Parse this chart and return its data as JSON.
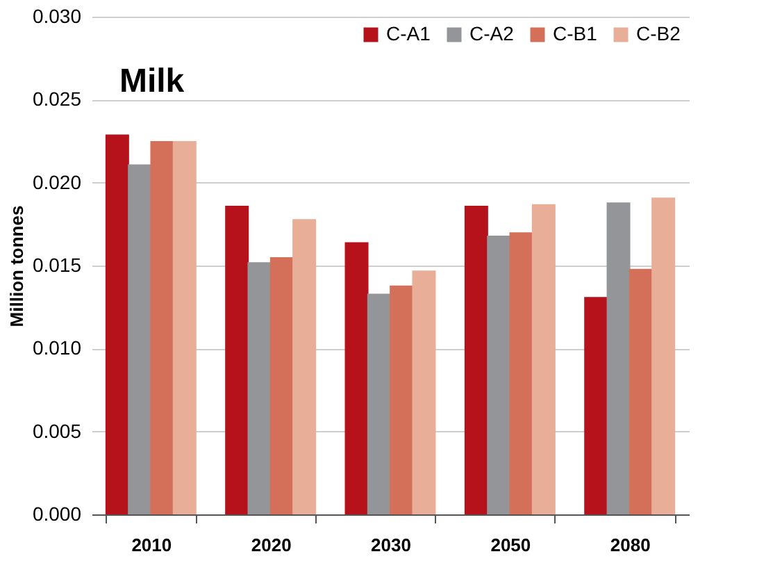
{
  "chart_data": {
    "type": "bar",
    "title": "Milk",
    "ylabel": "Million tonnes",
    "categories": [
      "2010",
      "2020",
      "2030",
      "2050",
      "2080"
    ],
    "series": [
      {
        "name": "C-A1",
        "color": "#b5121b",
        "values": [
          0.0229,
          0.0186,
          0.0164,
          0.0186,
          0.0131
        ]
      },
      {
        "name": "C-A2",
        "color": "#939598",
        "values": [
          0.0211,
          0.0152,
          0.0133,
          0.0168,
          0.0188
        ]
      },
      {
        "name": "C-B1",
        "color": "#d4705a",
        "values": [
          0.0225,
          0.0155,
          0.0138,
          0.017,
          0.0148
        ]
      },
      {
        "name": "C-B2",
        "color": "#e8ae98",
        "values": [
          0.0225,
          0.0178,
          0.0147,
          0.0187,
          0.0191
        ]
      }
    ],
    "ylim": [
      0,
      0.03
    ],
    "yticks": [
      {
        "value": 0,
        "label": "0.000"
      },
      0.005,
      {
        "value": 0.01,
        "label": "0.010"
      },
      0.015,
      {
        "value": 0.02,
        "label": "0.020"
      },
      0.025,
      {
        "value": 0.03,
        "label": "0.030"
      }
    ],
    "grid": "y",
    "legend": "top right"
  }
}
